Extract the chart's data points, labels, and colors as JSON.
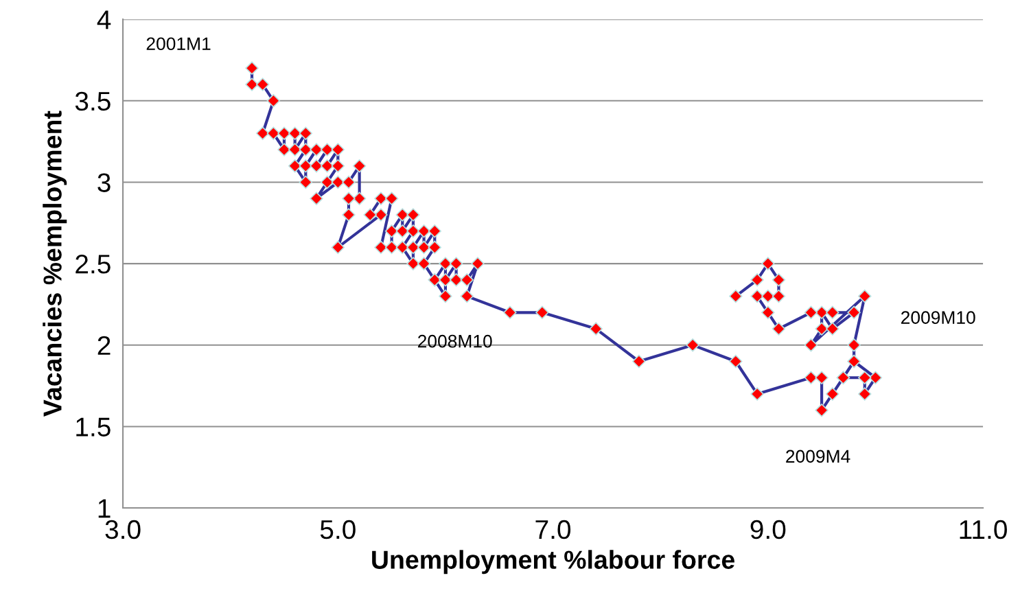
{
  "chart_data": {
    "type": "line",
    "xlabel": "Unemployment %labour force",
    "ylabel": "Vacancies %employment",
    "xlim": [
      3,
      11
    ],
    "xticks": [
      {
        "value": 3,
        "label": "3.0"
      },
      {
        "value": 5,
        "label": "5.0"
      },
      {
        "value": 7,
        "label": "7.0"
      },
      {
        "value": 9,
        "label": "9.0"
      },
      {
        "value": 11,
        "label": "11.0"
      }
    ],
    "ylim": [
      1,
      4
    ],
    "yticks": [
      1,
      1.5,
      2,
      2.5,
      3,
      3.5,
      4
    ],
    "grid": "y",
    "marker": "diamond",
    "line_style": "solid",
    "series": [
      {
        "color": "#333399",
        "x": [
          4.2,
          4.2,
          4.3,
          4.4,
          4.3,
          4.4,
          4.5,
          4.5,
          4.6,
          4.6,
          4.7,
          4.7,
          4.6,
          4.7,
          4.7,
          4.8,
          4.9,
          4.8,
          4.9,
          5.0,
          5.0,
          4.9,
          4.8,
          5.0,
          5.1,
          5.2,
          5.2,
          5.1,
          5.1,
          5.0,
          5.4,
          5.3,
          5.4,
          5.5,
          5.4,
          5.5,
          5.5,
          5.6,
          5.6,
          5.7,
          5.7,
          5.6,
          5.7,
          5.7,
          5.8,
          5.8,
          5.9,
          5.9,
          5.8,
          5.9,
          6.0,
          6.0,
          5.9,
          6.0,
          6.1,
          6.1,
          6.2,
          6.3,
          6.2,
          6.6,
          6.9,
          7.4,
          7.8,
          8.3,
          8.7,
          8.9,
          9.4,
          9.5,
          9.5,
          9.6,
          9.7,
          9.8,
          10.0,
          9.9,
          9.9,
          9.7,
          9.8,
          9.8,
          9.9,
          9.4,
          9.5,
          9.5,
          9.6,
          9.8,
          9.6,
          9.4,
          9.1,
          9.0,
          8.9,
          9.0,
          9.1,
          9.1,
          9.0,
          8.9,
          8.7
        ],
        "values": [
          3.7,
          3.6,
          3.6,
          3.5,
          3.3,
          3.3,
          3.2,
          3.3,
          3.3,
          3.2,
          3.3,
          3.2,
          3.1,
          3.0,
          3.1,
          3.2,
          3.2,
          3.1,
          3.1,
          3.2,
          3.1,
          3.0,
          2.9,
          3.0,
          3.0,
          3.1,
          2.9,
          2.9,
          2.8,
          2.6,
          2.8,
          2.8,
          2.9,
          2.9,
          2.6,
          2.6,
          2.7,
          2.8,
          2.7,
          2.8,
          2.7,
          2.6,
          2.5,
          2.6,
          2.7,
          2.6,
          2.7,
          2.6,
          2.5,
          2.4,
          2.5,
          2.3,
          2.4,
          2.4,
          2.5,
          2.4,
          2.4,
          2.5,
          2.3,
          2.2,
          2.2,
          2.1,
          1.9,
          2.0,
          1.9,
          1.7,
          1.8,
          1.8,
          1.6,
          1.7,
          1.8,
          1.9,
          1.8,
          1.7,
          1.8,
          1.8,
          1.9,
          2.0,
          2.3,
          2.0,
          2.1,
          2.2,
          2.1,
          2.2,
          2.2,
          2.2,
          2.1,
          2.2,
          2.3,
          2.3,
          2.3,
          2.4,
          2.5,
          2.4,
          2.3
        ]
      }
    ],
    "annotations": [
      {
        "text": "2001M1",
        "x": 4.2,
        "y": 3.7
      },
      "2008M10",
      {
        "text": "2009M4",
        "x": 9.5,
        "y": 1.6
      },
      {
        "text": "2009M10",
        "x": 9.9,
        "y": 2.3
      }
    ]
  }
}
